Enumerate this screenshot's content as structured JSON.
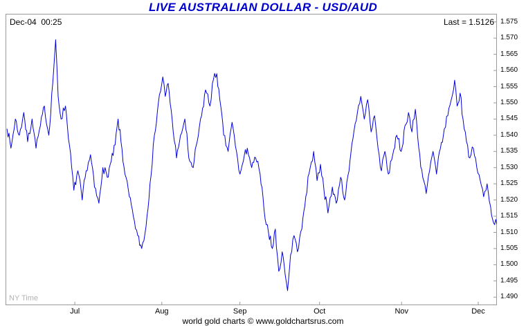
{
  "header": {
    "title": "LIVE AUSTRALIAN DOLLAR - USD/AUD",
    "timestamp": "Dec-04  00:25",
    "last_label": "Last = 1.5126"
  },
  "footer": {
    "credit": "world gold charts © www.goldchartsrus.com"
  },
  "plot": {
    "timezone_note": "NY Time"
  },
  "colors": {
    "line": "#0000dd",
    "title": "#0000cc",
    "border": "#999999",
    "muted": "#b3b3b3"
  },
  "chart_data": {
    "type": "line",
    "title": "LIVE AUSTRALIAN DOLLAR - USD/AUD",
    "series_name": "USD/AUD",
    "last": 1.5126,
    "ylim": [
      1.4875,
      1.5775
    ],
    "grid": false,
    "y_ticks": [
      "1.575",
      "1.570",
      "1.565",
      "1.560",
      "1.555",
      "1.550",
      "1.545",
      "1.540",
      "1.535",
      "1.530",
      "1.525",
      "1.520",
      "1.515",
      "1.510",
      "1.505",
      "1.500",
      "1.495",
      "1.490"
    ],
    "x_tick_labels": [
      "Jul",
      "Aug",
      "Sep",
      "Oct",
      "Nov",
      "Dec"
    ],
    "x_tick_pos": [
      0.141,
      0.318,
      0.477,
      0.639,
      0.806,
      0.962
    ],
    "points": [
      [
        0.003,
        1.542
      ],
      [
        0.011,
        1.536
      ],
      [
        0.02,
        1.545
      ],
      [
        0.028,
        1.54
      ],
      [
        0.037,
        1.547
      ],
      [
        0.045,
        1.538
      ],
      [
        0.054,
        1.545
      ],
      [
        0.062,
        1.536
      ],
      [
        0.071,
        1.543
      ],
      [
        0.079,
        1.549
      ],
      [
        0.088,
        1.54
      ],
      [
        0.096,
        1.556
      ],
      [
        0.102,
        1.5695
      ],
      [
        0.107,
        1.552
      ],
      [
        0.113,
        1.545
      ],
      [
        0.122,
        1.549
      ],
      [
        0.13,
        1.537
      ],
      [
        0.139,
        1.523
      ],
      [
        0.147,
        1.529
      ],
      [
        0.156,
        1.52
      ],
      [
        0.164,
        1.529
      ],
      [
        0.173,
        1.534
      ],
      [
        0.181,
        1.524
      ],
      [
        0.19,
        1.519
      ],
      [
        0.198,
        1.53
      ],
      [
        0.207,
        1.527
      ],
      [
        0.215,
        1.532
      ],
      [
        0.223,
        1.537
      ],
      [
        0.229,
        1.545
      ],
      [
        0.235,
        1.538
      ],
      [
        0.243,
        1.528
      ],
      [
        0.252,
        1.521
      ],
      [
        0.26,
        1.515
      ],
      [
        0.269,
        1.509
      ],
      [
        0.277,
        1.505
      ],
      [
        0.286,
        1.512
      ],
      [
        0.294,
        1.525
      ],
      [
        0.303,
        1.54
      ],
      [
        0.311,
        1.55
      ],
      [
        0.32,
        1.558
      ],
      [
        0.325,
        1.552
      ],
      [
        0.331,
        1.556
      ],
      [
        0.339,
        1.545
      ],
      [
        0.348,
        1.533
      ],
      [
        0.356,
        1.54
      ],
      [
        0.365,
        1.545
      ],
      [
        0.373,
        1.533
      ],
      [
        0.382,
        1.53
      ],
      [
        0.39,
        1.538
      ],
      [
        0.399,
        1.546
      ],
      [
        0.407,
        1.554
      ],
      [
        0.416,
        1.549
      ],
      [
        0.421,
        1.556
      ],
      [
        0.43,
        1.559
      ],
      [
        0.436,
        1.551
      ],
      [
        0.444,
        1.54
      ],
      [
        0.453,
        1.535
      ],
      [
        0.461,
        1.544
      ],
      [
        0.47,
        1.535
      ],
      [
        0.477,
        1.528
      ],
      [
        0.484,
        1.532
      ],
      [
        0.492,
        1.536
      ],
      [
        0.501,
        1.53
      ],
      [
        0.509,
        1.533
      ],
      [
        0.518,
        1.528
      ],
      [
        0.526,
        1.517
      ],
      [
        0.535,
        1.51
      ],
      [
        0.543,
        1.505
      ],
      [
        0.549,
        1.511
      ],
      [
        0.556,
        1.498
      ],
      [
        0.563,
        1.504
      ],
      [
        0.569,
        1.497
      ],
      [
        0.574,
        1.492
      ],
      [
        0.58,
        1.503
      ],
      [
        0.587,
        1.509
      ],
      [
        0.594,
        1.504
      ],
      [
        0.603,
        1.511
      ],
      [
        0.611,
        1.521
      ],
      [
        0.62,
        1.53
      ],
      [
        0.627,
        1.535
      ],
      [
        0.634,
        1.526
      ],
      [
        0.641,
        1.531
      ],
      [
        0.648,
        1.523
      ],
      [
        0.656,
        1.516
      ],
      [
        0.665,
        1.524
      ],
      [
        0.673,
        1.519
      ],
      [
        0.682,
        1.527
      ],
      [
        0.69,
        1.52
      ],
      [
        0.699,
        1.529
      ],
      [
        0.707,
        1.539
      ],
      [
        0.716,
        1.547
      ],
      [
        0.723,
        1.552
      ],
      [
        0.73,
        1.545
      ],
      [
        0.737,
        1.551
      ],
      [
        0.744,
        1.541
      ],
      [
        0.751,
        1.546
      ],
      [
        0.758,
        1.536
      ],
      [
        0.765,
        1.529
      ],
      [
        0.772,
        1.535
      ],
      [
        0.779,
        1.528
      ],
      [
        0.788,
        1.534
      ],
      [
        0.796,
        1.54
      ],
      [
        0.805,
        1.535
      ],
      [
        0.813,
        1.543
      ],
      [
        0.82,
        1.547
      ],
      [
        0.827,
        1.541
      ],
      [
        0.834,
        1.548
      ],
      [
        0.841,
        1.536
      ],
      [
        0.849,
        1.527
      ],
      [
        0.856,
        1.522
      ],
      [
        0.863,
        1.529
      ],
      [
        0.87,
        1.535
      ],
      [
        0.877,
        1.528
      ],
      [
        0.885,
        1.536
      ],
      [
        0.893,
        1.542
      ],
      [
        0.9,
        1.546
      ],
      [
        0.907,
        1.551
      ],
      [
        0.914,
        1.557
      ],
      [
        0.919,
        1.549
      ],
      [
        0.925,
        1.553
      ],
      [
        0.931,
        1.545
      ],
      [
        0.938,
        1.538
      ],
      [
        0.945,
        1.533
      ],
      [
        0.952,
        1.536
      ],
      [
        0.959,
        1.53
      ],
      [
        0.966,
        1.526
      ],
      [
        0.973,
        1.521
      ],
      [
        0.98,
        1.525
      ],
      [
        0.987,
        1.518
      ],
      [
        0.993,
        1.513
      ],
      [
        1.0,
        1.5126
      ]
    ]
  }
}
